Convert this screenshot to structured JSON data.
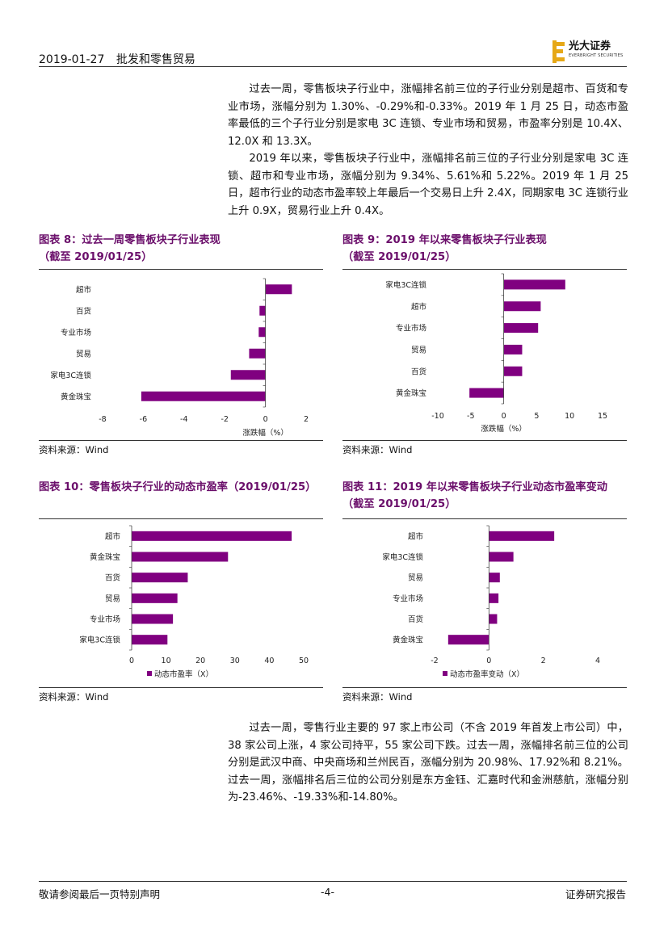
{
  "header": {
    "date": "2019-01-27",
    "sector": "批发和零售贸易",
    "logo_cn": "光大证券",
    "logo_en": "EVERBRIGHT SECURITIES"
  },
  "paragraphs_top": [
    "过去一周，零售板块子行业中，涨幅排名前三位的子行业分别是超市、百货和专业市场，涨幅分别为 1.30%、-0.29%和-0.33%。2019 年 1 月 25 日，动态市盈率最低的三个子行业分别是家电 3C 连锁、专业市场和贸易，市盈率分别是 10.4X、12.0X 和 13.3X。",
    "2019 年以来，零售板块子行业中，涨幅排名前三位的子行业分别是家电 3C 连锁、超市和专业市场，涨幅分别为 9.34%、5.61%和 5.22%。2019 年 1 月 25 日，超市行业的动态市盈率较上年最后一个交易日上升 2.4X，同期家电 3C 连锁行业上升 0.9X，贸易行业上升 0.4X。"
  ],
  "figures": {
    "fig8": {
      "title1": "图表 8：过去一周零售板块子行业表现",
      "title2": "（截至 2019/01/25）",
      "source": "资料来源：Wind"
    },
    "fig9": {
      "title1": "图表 9：2019 年以来零售板块子行业表现",
      "title2": "（截至 2019/01/25）",
      "source": "资料来源：Wind"
    },
    "fig10": {
      "title1": "图表 10：零售板块子行业的动态市盈率（2019/01/25）",
      "source": "资料来源：Wind"
    },
    "fig11": {
      "title1": "图表 11：2019 年以来零售板块子行业动态市盈率变动",
      "title2": "（截至 2019/01/25）",
      "source": "资料来源：Wind"
    }
  },
  "paragraph_bottom": "过去一周，零售行业主要的 97 家上市公司（不含 2019 年首发上市公司）中，38 家公司上涨，4 家公司持平，55 家公司下跌。过去一周，涨幅排名前三位的公司分别是武汉中商、中央商场和兰州民百，涨幅分别为 20.98%、17.92%和 8.21%。过去一周，涨幅排名后三位的公司分别是东方金钰、汇嘉时代和金洲慈航，涨幅分别为-23.46%、-19.33%和-14.80%。",
  "footer": {
    "left": "敬请参阅最后一页特别声明",
    "center": "-4-",
    "right": "证券研究报告"
  },
  "colors": {
    "bar": "#800080",
    "title": "#6b0f6b"
  },
  "chart_data": [
    {
      "id": "fig8",
      "type": "bar",
      "orientation": "horizontal",
      "categories": [
        "超市",
        "百货",
        "专业市场",
        "贸易",
        "家电3C连锁",
        "黄金珠宝"
      ],
      "values": [
        1.3,
        -0.29,
        -0.33,
        -0.8,
        -1.7,
        -6.1
      ],
      "xlabel": "涨跌幅（%）",
      "xlim": [
        -8,
        2
      ],
      "xticks": [
        -8,
        -6,
        -4,
        -2,
        0,
        2
      ]
    },
    {
      "id": "fig9",
      "type": "bar",
      "orientation": "horizontal",
      "categories": [
        "家电3C连锁",
        "超市",
        "专业市场",
        "贸易",
        "百货",
        "黄金珠宝"
      ],
      "values": [
        9.34,
        5.61,
        5.22,
        2.8,
        2.8,
        -5.2
      ],
      "xlabel": "涨跌幅（%）",
      "xlim": [
        -10,
        15
      ],
      "xticks": [
        -10,
        -5,
        0,
        5,
        10,
        15
      ]
    },
    {
      "id": "fig10",
      "type": "bar",
      "orientation": "horizontal",
      "categories": [
        "超市",
        "黄金珠宝",
        "百货",
        "贸易",
        "专业市场",
        "家电3C连锁"
      ],
      "values": [
        46.5,
        28.0,
        16.3,
        13.3,
        12.0,
        10.4
      ],
      "xlim": [
        0,
        50
      ],
      "xticks": [
        0,
        10,
        20,
        30,
        40,
        50
      ],
      "legend": "动态市盈率（X）"
    },
    {
      "id": "fig11",
      "type": "bar",
      "orientation": "horizontal",
      "categories": [
        "超市",
        "家电3C连锁",
        "贸易",
        "专业市场",
        "百货",
        "黄金珠宝"
      ],
      "values": [
        2.4,
        0.9,
        0.4,
        0.35,
        0.3,
        -1.5
      ],
      "xlim": [
        -2,
        4
      ],
      "xticks": [
        -2,
        0,
        2,
        4
      ],
      "legend": "动态市盈率变动（X）"
    }
  ]
}
